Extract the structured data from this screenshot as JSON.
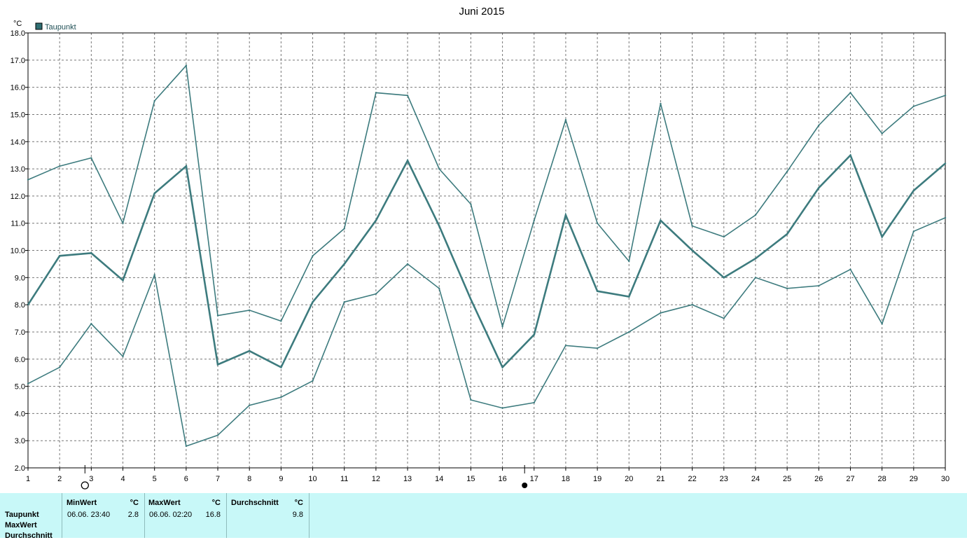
{
  "chart_data": {
    "type": "line",
    "title": "Juni 2015",
    "ylabel": "°C",
    "ylim": [
      2.0,
      18.0
    ],
    "y_ticks": [
      "2.0",
      "3.0",
      "4.0",
      "5.0",
      "6.0",
      "7.0",
      "8.0",
      "9.0",
      "10.0",
      "11.0",
      "12.0",
      "13.0",
      "14.0",
      "15.0",
      "16.0",
      "17.0",
      "18.0"
    ],
    "x": [
      1,
      2,
      3,
      4,
      5,
      6,
      7,
      8,
      9,
      10,
      11,
      12,
      13,
      14,
      15,
      16,
      17,
      18,
      19,
      20,
      21,
      22,
      23,
      24,
      25,
      26,
      27,
      28,
      29,
      30
    ],
    "x_labels": [
      "1",
      "2",
      "3",
      "4",
      "5",
      "6",
      "7",
      "8",
      "9",
      "10",
      "11",
      "12",
      "13",
      "14",
      "15",
      "16",
      "17",
      "18",
      "19",
      "20",
      "21",
      "22",
      "23",
      "24",
      "25",
      "26",
      "27",
      "28",
      "29",
      "30"
    ],
    "grid": true,
    "legend": [
      {
        "label": "Taupunkt",
        "color": "#3d7b7e"
      }
    ],
    "legend_position": "top-left",
    "series": [
      {
        "role": "max",
        "values": [
          12.6,
          13.1,
          13.4,
          11.0,
          15.5,
          16.8,
          7.6,
          7.8,
          7.4,
          9.8,
          10.8,
          15.8,
          15.7,
          13.0,
          11.7,
          7.2,
          11.1,
          14.8,
          11.0,
          9.6,
          15.4,
          10.9,
          10.5,
          11.3,
          12.9,
          14.6,
          15.8,
          14.3,
          15.3,
          15.7
        ]
      },
      {
        "role": "avg",
        "values": [
          8.0,
          9.8,
          9.9,
          8.9,
          12.1,
          13.1,
          5.8,
          6.3,
          5.7,
          8.1,
          9.5,
          11.1,
          13.3,
          10.9,
          8.2,
          5.7,
          6.9,
          11.3,
          8.5,
          8.3,
          11.1,
          10.0,
          9.0,
          9.7,
          10.6,
          12.3,
          13.5,
          10.5,
          12.2,
          13.2
        ]
      },
      {
        "role": "min",
        "values": [
          5.1,
          5.7,
          7.3,
          6.1,
          9.1,
          2.8,
          3.2,
          4.3,
          4.6,
          5.2,
          8.1,
          8.4,
          9.5,
          8.6,
          4.5,
          4.2,
          4.4,
          6.5,
          6.4,
          7.0,
          7.7,
          8.0,
          7.5,
          9.0,
          8.6,
          8.7,
          9.3,
          7.3,
          10.7,
          11.2
        ]
      }
    ],
    "moon_phases": [
      {
        "phase": "full",
        "day": 2.8
      },
      {
        "phase": "new",
        "day": 16.7
      }
    ]
  },
  "stats": {
    "row_labels": [
      "Taupunkt",
      "MaxWert",
      "Durchschnitt"
    ],
    "columns": [
      {
        "header": "MinWert",
        "unit": "°C",
        "timestamp": "06.06.  23:40",
        "value": "2.8"
      },
      {
        "header": "MaxWert",
        "unit": "°C",
        "timestamp": "06.06.  02:20",
        "value": "16.8"
      },
      {
        "header": "Durchschnitt",
        "unit": "°C",
        "timestamp": "",
        "value": "9.8"
      }
    ]
  }
}
